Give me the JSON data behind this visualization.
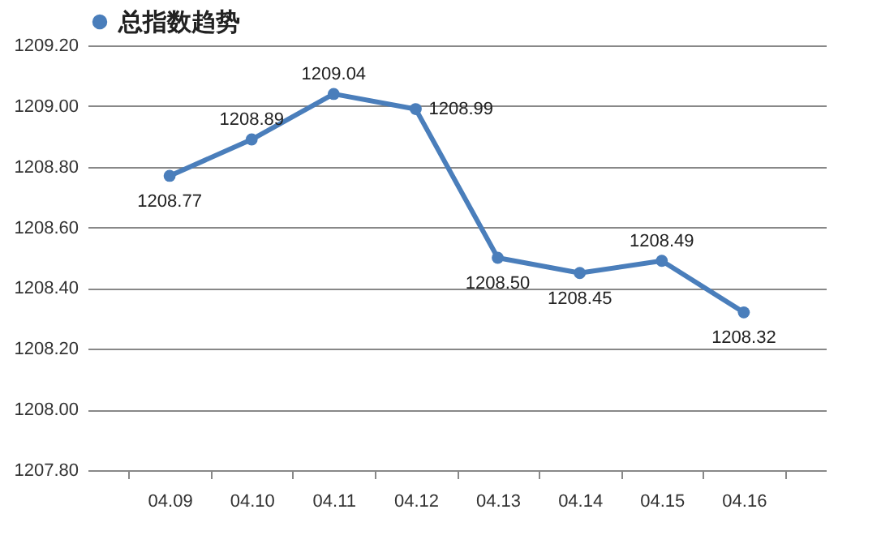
{
  "chart_data": {
    "type": "line",
    "categories": [
      "04.09",
      "04.10",
      "04.11",
      "04.12",
      "04.13",
      "04.14",
      "04.15",
      "04.16"
    ],
    "series": [
      {
        "name": "总指数趋势",
        "color": "#4a7ebb",
        "values": [
          1208.77,
          1208.89,
          1209.04,
          1208.99,
          1208.5,
          1208.45,
          1208.49,
          1208.32
        ],
        "value_labels": [
          "1208.77",
          "1208.89",
          "1209.04",
          "1208.99",
          "1208.50",
          "1208.45",
          "1208.49",
          "1208.32"
        ]
      }
    ],
    "ylim": [
      1207.8,
      1209.2
    ],
    "yticks": [
      {
        "value": 1207.8,
        "label": "1207.80"
      },
      {
        "value": 1208,
        "label": "1208.00"
      },
      {
        "value": 1208.2,
        "label": "1208.20"
      },
      {
        "value": 1208.4,
        "label": "1208.40"
      },
      {
        "value": 1208.6,
        "label": "1208.60"
      },
      {
        "value": 1208.8,
        "label": "1208.80"
      },
      {
        "value": 1209,
        "label": "1209.00"
      },
      {
        "value": 1209.2,
        "label": "1209.20"
      }
    ],
    "grid": "y",
    "legend": "top",
    "marker": "circle",
    "line_style": "solid"
  }
}
